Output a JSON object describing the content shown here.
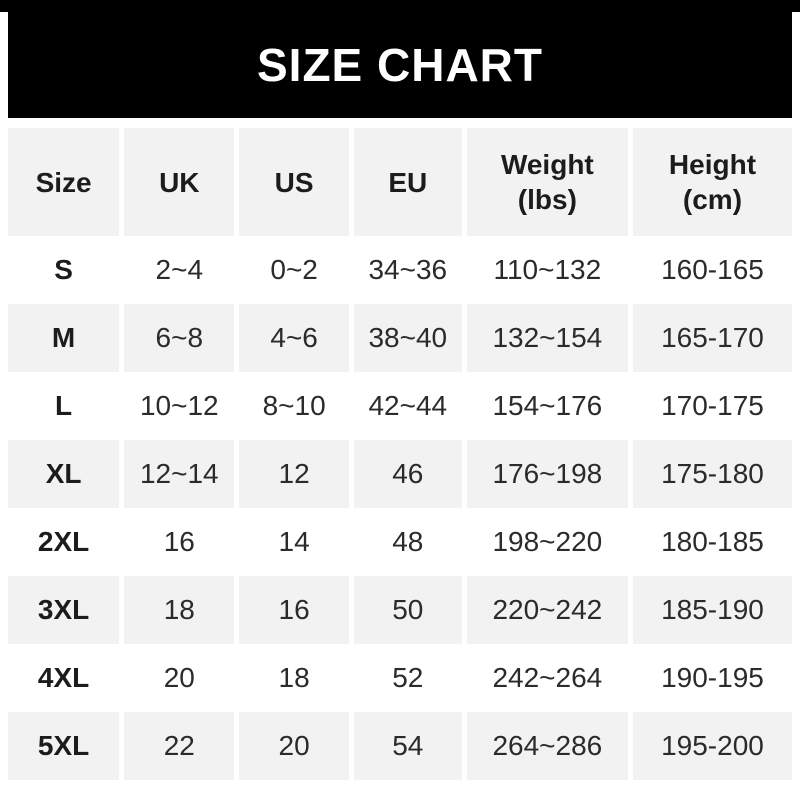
{
  "chart_data": {
    "type": "table",
    "title": "SIZE CHART",
    "columns": [
      {
        "line1": "Size",
        "line2": ""
      },
      {
        "line1": "UK",
        "line2": ""
      },
      {
        "line1": "US",
        "line2": ""
      },
      {
        "line1": "EU",
        "line2": ""
      },
      {
        "line1": "Weight",
        "line2": "(lbs)"
      },
      {
        "line1": "Height",
        "line2": "(cm)"
      }
    ],
    "rows": [
      {
        "size": "S",
        "uk": "2~4",
        "us": "0~2",
        "eu": "34~36",
        "weight_lbs": "110~132",
        "height_cm": "160-165"
      },
      {
        "size": "M",
        "uk": "6~8",
        "us": "4~6",
        "eu": "38~40",
        "weight_lbs": "132~154",
        "height_cm": "165-170"
      },
      {
        "size": "L",
        "uk": "10~12",
        "us": "8~10",
        "eu": "42~44",
        "weight_lbs": "154~176",
        "height_cm": "170-175"
      },
      {
        "size": "XL",
        "uk": "12~14",
        "us": "12",
        "eu": "46",
        "weight_lbs": "176~198",
        "height_cm": "175-180"
      },
      {
        "size": "2XL",
        "uk": "16",
        "us": "14",
        "eu": "48",
        "weight_lbs": "198~220",
        "height_cm": "180-185"
      },
      {
        "size": "3XL",
        "uk": "18",
        "us": "16",
        "eu": "50",
        "weight_lbs": "220~242",
        "height_cm": "185-190"
      },
      {
        "size": "4XL",
        "uk": "20",
        "us": "18",
        "eu": "52",
        "weight_lbs": "242~264",
        "height_cm": "190-195"
      },
      {
        "size": "5XL",
        "uk": "22",
        "us": "20",
        "eu": "54",
        "weight_lbs": "264~286",
        "height_cm": "195-200"
      }
    ]
  },
  "colors": {
    "banner_bg": "#000000",
    "banner_text": "#ffffff",
    "row_alt_bg": "#f2f2f2",
    "text_bold": "#1c1c1c",
    "text_regular": "#2b2b2b"
  }
}
